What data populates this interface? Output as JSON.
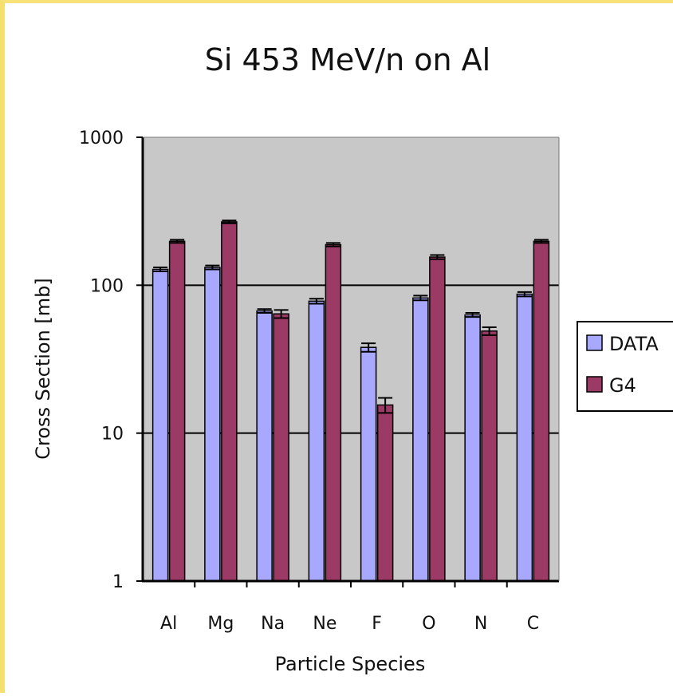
{
  "chart_data": {
    "type": "bar",
    "title": "Si 453 MeV/n on Al",
    "xlabel": "Particle Species",
    "ylabel": "Cross Section [mb]",
    "yscale": "log",
    "ylim": [
      1,
      1000
    ],
    "yticks": [
      "1",
      "10",
      "100",
      "1000"
    ],
    "categories": [
      "Al",
      "Mg",
      "Na",
      "Ne",
      "F",
      "O",
      "N",
      "C"
    ],
    "series": [
      {
        "name": "DATA",
        "color": "#a8a8ff",
        "values": [
          128,
          132,
          67,
          78,
          38,
          82,
          63,
          87
        ],
        "errors": [
          4,
          4,
          2,
          3,
          2.5,
          3,
          2,
          3
        ]
      },
      {
        "name": "G4",
        "color": "#9c3a66",
        "values": [
          198,
          268,
          64,
          188,
          15.5,
          155,
          49,
          198
        ],
        "errors": [
          5,
          6,
          4,
          5,
          1.8,
          5,
          3,
          5
        ]
      }
    ],
    "legend_position": "right",
    "grid": "major horizontal lines",
    "plot_background": "#c8c8c8"
  }
}
